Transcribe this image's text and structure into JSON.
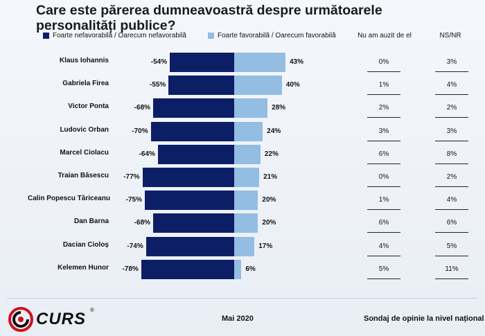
{
  "title": "Care este părerea dumneavoastră despre următoarele personalități publice?",
  "legend": {
    "negative": "Foarte nefavorabilă / Oarecum nefavorabilă",
    "positive": "Foarte favorabilă / Oarecum favorabilă"
  },
  "columns": {
    "nu_am_auzit": "Nu am auzit de el",
    "ns_nr": "NS/NR"
  },
  "colors": {
    "negative": "#0c1f66",
    "positive": "#93bde3"
  },
  "chart_data": {
    "type": "bar",
    "title": "Care este părerea dumneavoastră despre următoarele personalități publice?",
    "categories": [
      "Klaus Iohannis",
      "Gabriela Firea",
      "Victor Ponta",
      "Ludovic Orban",
      "Marcel Ciolacu",
      "Traian Băsescu",
      "Calin Popescu Tăriceanu",
      "Dan Barna",
      "Dacian Cioloș",
      "Kelemen Hunor"
    ],
    "series": [
      {
        "name": "Foarte nefavorabilă / Oarecum nefavorabilă",
        "values": [
          -54,
          -55,
          -68,
          -70,
          -64,
          -77,
          -75,
          -68,
          -74,
          -78
        ],
        "labels": [
          "-54%",
          "-55%",
          "-68%",
          "-70%",
          "-64%",
          "-77%",
          "-75%",
          "-68%",
          "-74%",
          "-78%"
        ]
      },
      {
        "name": "Foarte favorabilă / Oarecum favorabilă",
        "values": [
          43,
          40,
          28,
          24,
          22,
          21,
          20,
          20,
          17,
          6
        ],
        "labels": [
          "43%",
          "40%",
          "28%",
          "24%",
          "22%",
          "21%",
          "20%",
          "20%",
          "17%",
          "6%"
        ]
      }
    ],
    "table": {
      "nu_am_auzit": [
        "0%",
        "1%",
        "2%",
        "3%",
        "6%",
        "0%",
        "1%",
        "6%",
        "4%",
        "5%"
      ],
      "ns_nr": [
        "3%",
        "4%",
        "2%",
        "3%",
        "8%",
        "2%",
        "4%",
        "6%",
        "5%",
        "11%"
      ]
    }
  },
  "footer": {
    "brand": "CURS",
    "registered": "®",
    "date": "Mai 2020",
    "note": "Sondaj de opinie la nivel național"
  }
}
